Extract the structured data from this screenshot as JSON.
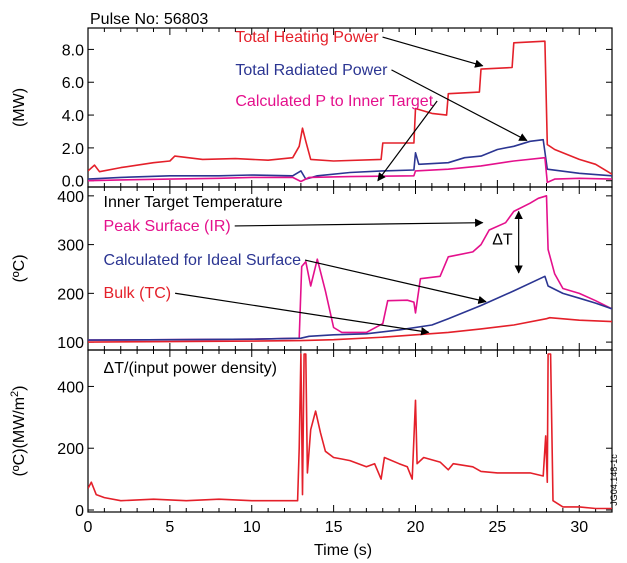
{
  "chart_data": {
    "type": "line",
    "title": "Pulse No: 56803",
    "xlabel": "Time (s)",
    "xlim": [
      0,
      32
    ],
    "x_ticks": [
      "0",
      "5",
      "10",
      "15",
      "20",
      "25",
      "30"
    ],
    "watermark": "JG04.148-1c",
    "grid": false,
    "panels": [
      {
        "ylabel": "(MW)",
        "ylim": [
          -0.2,
          9.0
        ],
        "y_ticks": [
          "0.0",
          "2.0",
          "4.0",
          "6.0",
          "8.0"
        ],
        "series": [
          {
            "name": "Total Heating Power",
            "color": "#e4202a",
            "label_at": [
              9,
              8.45
            ],
            "arrow_to": [
              24.1,
              7.0
            ],
            "points": [
              [
                0,
                0.6
              ],
              [
                0.4,
                0.95
              ],
              [
                0.7,
                0.55
              ],
              [
                2,
                0.8
              ],
              [
                4,
                1.1
              ],
              [
                5,
                1.2
              ],
              [
                5.3,
                1.5
              ],
              [
                7,
                1.3
              ],
              [
                9,
                1.35
              ],
              [
                11,
                1.25
              ],
              [
                12.5,
                1.4
              ],
              [
                12.9,
                2.1
              ],
              [
                13.1,
                3.2
              ],
              [
                13.3,
                2.4
              ],
              [
                13.6,
                1.3
              ],
              [
                15,
                1.2
              ],
              [
                17.9,
                1.3
              ],
              [
                18,
                2.3
              ],
              [
                19.9,
                2.3
              ],
              [
                20,
                4.4
              ],
              [
                21,
                4.1
              ],
              [
                21.9,
                4.0
              ],
              [
                22,
                5.3
              ],
              [
                23.9,
                5.4
              ],
              [
                24,
                6.8
              ],
              [
                25.9,
                6.9
              ],
              [
                26,
                8.4
              ],
              [
                27.9,
                8.5
              ],
              [
                28.05,
                2.2
              ],
              [
                28.5,
                1.9
              ],
              [
                30,
                1.3
              ],
              [
                31,
                1.0
              ],
              [
                32,
                0.4
              ]
            ]
          },
          {
            "name": "Total Radiated Power",
            "color": "#2b3592",
            "label_at": [
              9,
              6.45
            ],
            "arrow_to": [
              26.8,
              2.45
            ],
            "points": [
              [
                0,
                0.1
              ],
              [
                2,
                0.2
              ],
              [
                5,
                0.3
              ],
              [
                8,
                0.3
              ],
              [
                10,
                0.35
              ],
              [
                12.5,
                0.3
              ],
              [
                13,
                0.6
              ],
              [
                13.3,
                0.1
              ],
              [
                14,
                0.3
              ],
              [
                16,
                0.5
              ],
              [
                18,
                0.6
              ],
              [
                19.9,
                0.65
              ],
              [
                20,
                1.7
              ],
              [
                20.2,
                1.0
              ],
              [
                22,
                1.1
              ],
              [
                23,
                1.4
              ],
              [
                24,
                1.5
              ],
              [
                25,
                1.9
              ],
              [
                26,
                2.1
              ],
              [
                27,
                2.4
              ],
              [
                27.8,
                2.5
              ],
              [
                28.05,
                0.7
              ],
              [
                30,
                0.45
              ],
              [
                32,
                0.3
              ]
            ]
          },
          {
            "name": "Calculated P to Inner Target",
            "color": "#e4108c",
            "label_at": [
              9,
              4.55
            ],
            "arrow_to": [
              17.7,
              0.0
            ],
            "points": [
              [
                0,
                0.0
              ],
              [
                2,
                0.05
              ],
              [
                5,
                0.1
              ],
              [
                8,
                0.15
              ],
              [
                10,
                0.2
              ],
              [
                12.5,
                0.2
              ],
              [
                13,
                -0.05
              ],
              [
                13.5,
                0.2
              ],
              [
                16,
                0.25
              ],
              [
                19.9,
                0.3
              ],
              [
                20,
                0.6
              ],
              [
                22,
                0.7
              ],
              [
                24,
                0.9
              ],
              [
                26,
                1.2
              ],
              [
                27.9,
                1.4
              ],
              [
                28.05,
                -0.1
              ],
              [
                28.5,
                0.1
              ],
              [
                30,
                0.15
              ],
              [
                32,
                0.1
              ]
            ]
          }
        ]
      },
      {
        "ylabel": "(oC)",
        "ylim": [
          92,
          412
        ],
        "y_ticks": [
          "100",
          "200",
          "300",
          "400"
        ],
        "heading": "Inner Target Temperature",
        "annotation": "ΔT",
        "series": [
          {
            "name": "Peak Surface (IR)",
            "color": "#e4108c",
            "label_at": [
              0.95,
              328
            ],
            "arrow_to": [
              24.1,
              345
            ],
            "points": [
              [
                0,
                104
              ],
              [
                5,
                105
              ],
              [
                10,
                106
              ],
              [
                12.9,
                108
              ],
              [
                13.05,
                255
              ],
              [
                13.3,
                265
              ],
              [
                13.6,
                215
              ],
              [
                14,
                270
              ],
              [
                14.5,
                205
              ],
              [
                15,
                130
              ],
              [
                15.5,
                120
              ],
              [
                17,
                120
              ],
              [
                18,
                138
              ],
              [
                18.3,
                185
              ],
              [
                19.5,
                186
              ],
              [
                19.9,
                182
              ],
              [
                20,
                160
              ],
              [
                20.3,
                230
              ],
              [
                21.5,
                235
              ],
              [
                22,
                275
              ],
              [
                23.5,
                285
              ],
              [
                24,
                300
              ],
              [
                24.5,
                330
              ],
              [
                25.5,
                345
              ],
              [
                26,
                368
              ],
              [
                27,
                385
              ],
              [
                27.5,
                395
              ],
              [
                28,
                400
              ],
              [
                28.1,
                290
              ],
              [
                28.5,
                240
              ],
              [
                29,
                210
              ],
              [
                30,
                200
              ],
              [
                31,
                185
              ],
              [
                32,
                168
              ]
            ]
          },
          {
            "name": "Calculated for Ideal Surface",
            "color": "#2b3592",
            "label_at": [
              0.95,
              258
            ],
            "arrow_to": [
              24.3,
              183
            ],
            "points": [
              [
                0,
                104
              ],
              [
                5,
                105
              ],
              [
                10,
                106
              ],
              [
                13,
                108
              ],
              [
                13.5,
                112
              ],
              [
                15,
                115
              ],
              [
                17,
                117
              ],
              [
                19,
                125
              ],
              [
                21,
                135
              ],
              [
                22,
                148
              ],
              [
                24,
                175
              ],
              [
                26,
                205
              ],
              [
                27.9,
                235
              ],
              [
                28.1,
                215
              ],
              [
                29,
                200
              ],
              [
                30,
                190
              ],
              [
                31,
                180
              ],
              [
                32,
                168
              ]
            ]
          },
          {
            "name": "Bulk (TC)",
            "color": "#e4202a",
            "label_at": [
              0.95,
              190
            ],
            "arrow_to": [
              20.8,
              120
            ],
            "points": [
              [
                0,
                100
              ],
              [
                5,
                101
              ],
              [
                10,
                102
              ],
              [
                13,
                103
              ],
              [
                15,
                105
              ],
              [
                18,
                110
              ],
              [
                20,
                115
              ],
              [
                22,
                120
              ],
              [
                24,
                127
              ],
              [
                26,
                135
              ],
              [
                28,
                148
              ],
              [
                28.2,
                150
              ],
              [
                30,
                145
              ],
              [
                32,
                142
              ]
            ]
          }
        ]
      },
      {
        "ylabel": "(oC)(MW/m2)",
        "ylim": [
          0,
          505
        ],
        "y_ticks": [
          "0",
          "200",
          "400"
        ],
        "heading": "ΔT/(input power density)",
        "series": [
          {
            "name": "ΔT/(input power density)",
            "color": "#e4202a",
            "points": [
              [
                0,
                70
              ],
              [
                0.2,
                90
              ],
              [
                0.5,
                50
              ],
              [
                1,
                40
              ],
              [
                2,
                30
              ],
              [
                4,
                35
              ],
              [
                6,
                30
              ],
              [
                8,
                35
              ],
              [
                10,
                30
              ],
              [
                12,
                30
              ],
              [
                12.8,
                30
              ],
              [
                12.9,
                200
              ],
              [
                13.0,
                505
              ],
              [
                13.1,
                50
              ],
              [
                13.2,
                505
              ],
              [
                13.3,
                505
              ],
              [
                13.4,
                120
              ],
              [
                13.6,
                260
              ],
              [
                13.9,
                320
              ],
              [
                14.2,
                250
              ],
              [
                14.5,
                190
              ],
              [
                15,
                170
              ],
              [
                15.5,
                165
              ],
              [
                16,
                160
              ],
              [
                17,
                140
              ],
              [
                17.5,
                150
              ],
              [
                17.9,
                100
              ],
              [
                18.1,
                170
              ],
              [
                19,
                150
              ],
              [
                19.5,
                140
              ],
              [
                19.8,
                100
              ],
              [
                20,
                355
              ],
              [
                20.1,
                150
              ],
              [
                20.5,
                170
              ],
              [
                21.5,
                155
              ],
              [
                22,
                130
              ],
              [
                22.3,
                150
              ],
              [
                23.5,
                140
              ],
              [
                24,
                125
              ],
              [
                25,
                120
              ],
              [
                26,
                120
              ],
              [
                27,
                120
              ],
              [
                27.8,
                110
              ],
              [
                27.95,
                240
              ],
              [
                28.05,
                90
              ],
              [
                28.1,
                505
              ],
              [
                28.25,
                505
              ],
              [
                28.4,
                30
              ],
              [
                29,
                10
              ],
              [
                30,
                10
              ],
              [
                31,
                5
              ],
              [
                32,
                5
              ]
            ]
          }
        ]
      }
    ]
  }
}
